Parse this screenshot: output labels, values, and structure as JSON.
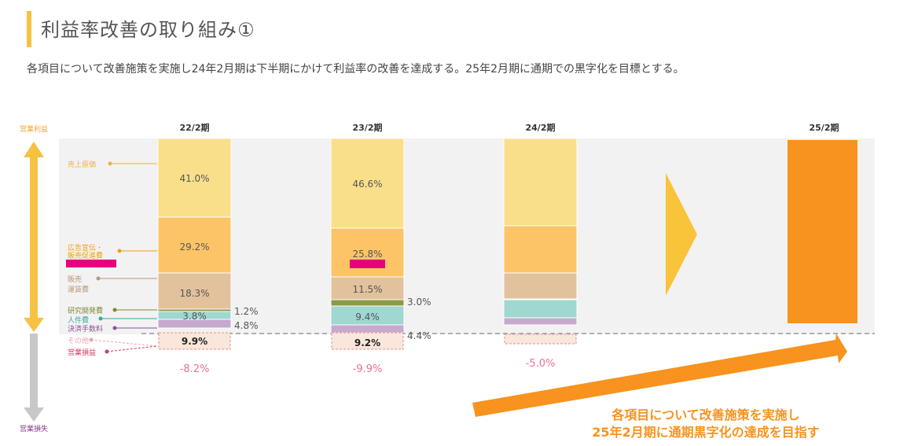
{
  "header": {
    "title": "利益率改善の取り組み①",
    "subtitle": "各項目について改善施策を実施し24年2月期は下半期にかけて利益率の改善を達成する。25年2月期に通期での黒字化を目標とする。"
  },
  "axis": {
    "top_label": "営業利益",
    "bottom_label": "営業損失"
  },
  "note": {
    "line1": "各項目について改善施策を実施し",
    "line2": "25年2月期に通期黒字化の達成を目指す"
  },
  "colors": {
    "cogs": "#fadf8a",
    "ad": "#fcc466",
    "ship": "#e2c29d",
    "rd": "#8c9a45",
    "personnel": "#9fd7d1",
    "payment": "#c6a9ce",
    "other_outline": "#e88e8e",
    "arrow_up": "#f5c242",
    "arrow_down": "#c8c8c8",
    "arrow_right": "#f7931e",
    "target_bar": "#f7931e",
    "neg_text": "#e8709a",
    "highlight": "#e6007e"
  },
  "chart_data": {
    "type": "bar",
    "stacked": true,
    "categories": [
      "22/2期",
      "23/2期",
      "24/2期",
      "25/2期"
    ],
    "legend": [
      "売上原価",
      "広告宣伝・販売促進費",
      "販売運賃費",
      "研究開発費",
      "人件費",
      "決済手数料",
      "その他",
      "営業損益"
    ],
    "series": [
      {
        "name": "売上原価",
        "key": "cogs",
        "values": [
          41.0,
          46.6,
          null,
          null
        ]
      },
      {
        "name": "広告宣伝・販売促進費",
        "key": "ad",
        "values": [
          29.2,
          25.8,
          null,
          null
        ]
      },
      {
        "name": "販売運賃費",
        "key": "ship",
        "values": [
          18.3,
          11.5,
          null,
          null
        ]
      },
      {
        "name": "研究開発費",
        "key": "rd",
        "values": [
          1.2,
          3.0,
          null,
          null
        ]
      },
      {
        "name": "人件費",
        "key": "personnel",
        "values": [
          3.8,
          9.4,
          null,
          null
        ]
      },
      {
        "name": "決済手数料",
        "key": "payment",
        "values": [
          4.8,
          4.4,
          null,
          null
        ]
      },
      {
        "name": "その他",
        "key": "other",
        "values": [
          9.9,
          9.2,
          null,
          null
        ]
      }
    ],
    "operating_margin": [
      "-8.2%",
      "-9.9%",
      "-5.0%",
      ""
    ],
    "labels": {
      "cogs": [
        "41.0%",
        "46.6%"
      ],
      "ad": [
        "29.2%",
        "25.8%"
      ],
      "ship": [
        "18.3%",
        "11.5%"
      ],
      "rd": [
        "1.2%",
        "3.0%"
      ],
      "personnel": [
        "3.8%",
        "9.4%"
      ],
      "payment": [
        "4.8%",
        "4.4%"
      ],
      "other": [
        "9.9%",
        "9.2%"
      ]
    }
  }
}
